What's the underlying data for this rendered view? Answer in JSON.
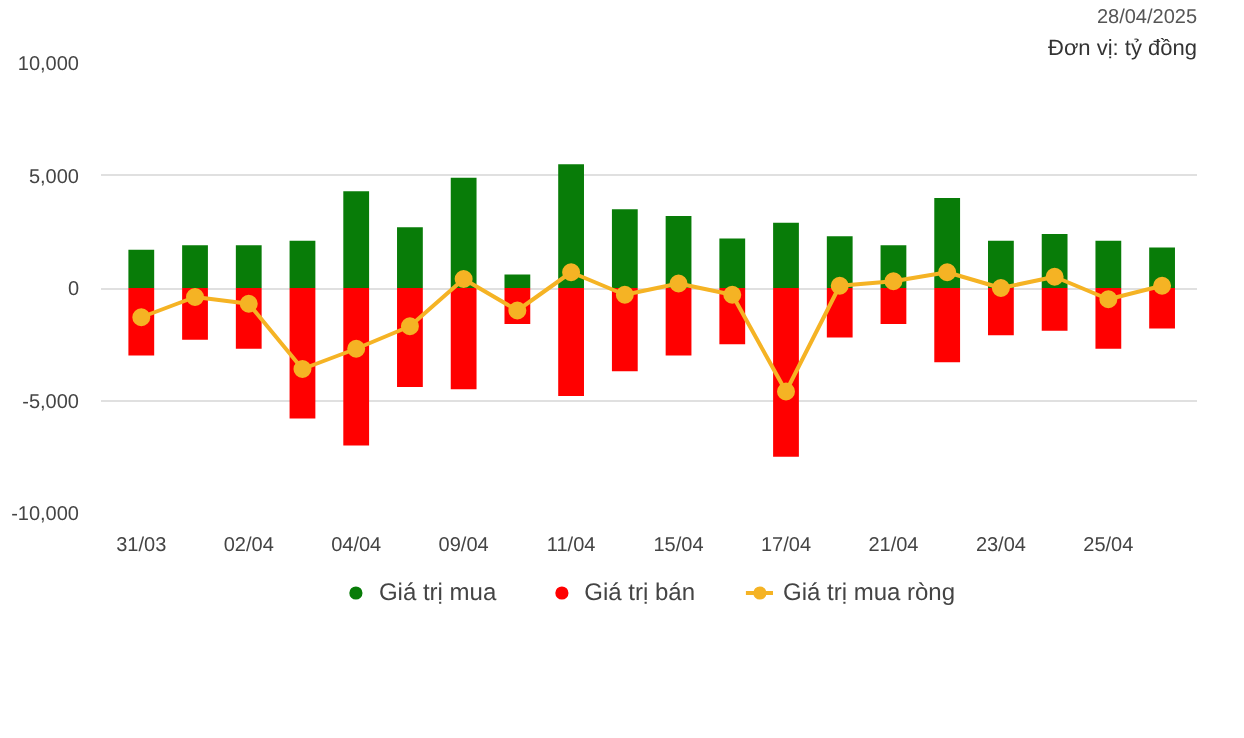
{
  "chart_data": {
    "type": "bar",
    "stacked": true,
    "categories": [
      "31/03",
      null,
      "02/04",
      null,
      "04/04",
      null,
      "09/04",
      null,
      "11/04",
      null,
      "15/04",
      null,
      "17/04",
      null,
      "21/04",
      null,
      "23/04",
      null,
      "25/04",
      null
    ],
    "series": [
      {
        "name": "Giá trị mua",
        "color": "#087c08",
        "values": [
          1700,
          1900,
          1900,
          2100,
          4300,
          2700,
          4900,
          600,
          5500,
          3500,
          3200,
          2200,
          2900,
          2300,
          1900,
          4000,
          2100,
          2400,
          2100,
          1800
        ]
      },
      {
        "name": "Giá trị bán",
        "color": "#ff0000",
        "values": [
          -3000,
          -2300,
          -2700,
          -5800,
          -7000,
          -4400,
          -4500,
          -1600,
          -4800,
          -3700,
          -3000,
          -2500,
          -7500,
          -2200,
          -1600,
          -3300,
          -2100,
          -1900,
          -2700,
          -1800
        ]
      },
      {
        "name": "Giá trị mua ròng",
        "type": "line",
        "color": "#f5b324",
        "marker": "circle",
        "values": [
          -1300,
          -400,
          -700,
          -3600,
          -2700,
          -1700,
          400,
          -1000,
          700,
          -300,
          200,
          -300,
          -4600,
          100,
          300,
          700,
          0,
          500,
          -500,
          100
        ]
      }
    ],
    "ylim": [
      -10000,
      10000
    ],
    "yticks": [
      {
        "value": -10000,
        "label": "-10,000"
      },
      {
        "value": -5000,
        "label": "-5,000"
      },
      0,
      {
        "value": 5000,
        "label": "5,000"
      },
      {
        "value": 10000,
        "label": "10,000"
      }
    ],
    "grid": "y",
    "legend": "bottom",
    "annotations": [
      "Đơn vị: tỷ đồng",
      "28/04/2025"
    ]
  }
}
